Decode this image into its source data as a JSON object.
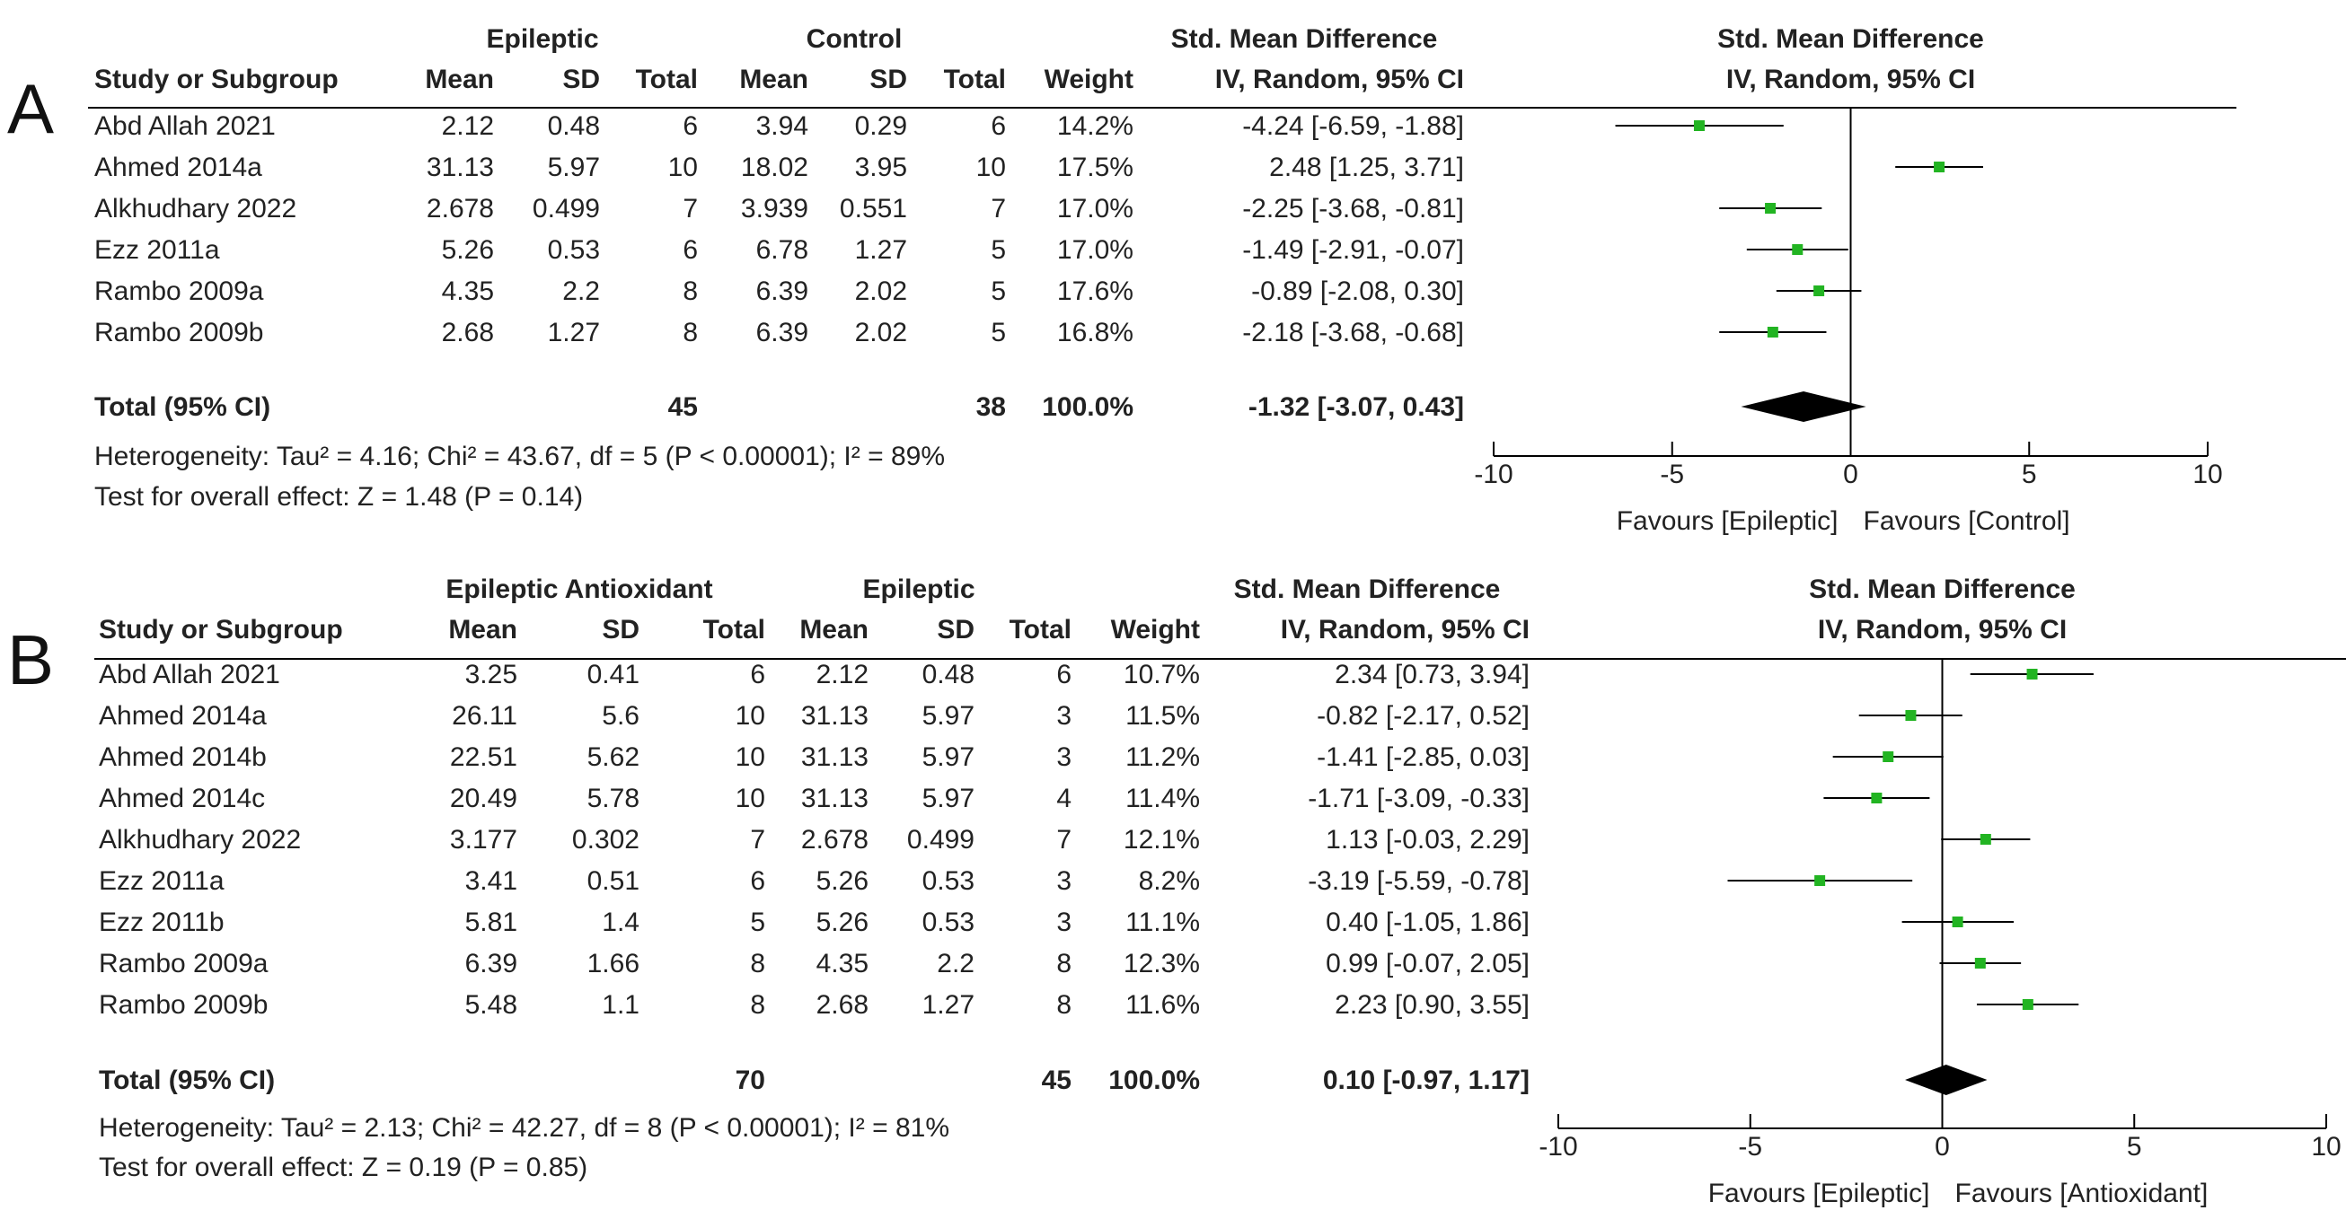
{
  "colors": {
    "marker": "#22b422",
    "diamond": "#000000",
    "line": "#000000",
    "text": "#222222"
  },
  "chart_data": [
    {
      "type": "forest",
      "panel_label": "A",
      "group1_label": "Epileptic",
      "group2_label": "Control",
      "col_headers": {
        "study": "Study or Subgroup",
        "mean1": "Mean",
        "sd1": "SD",
        "total1": "Total",
        "mean2": "Mean",
        "sd2": "SD",
        "total2": "Total",
        "weight": "Weight",
        "effect_title": "Std. Mean Difference",
        "effect_method": "IV, Random, 95% CI"
      },
      "plot_title": "Std. Mean Difference",
      "plot_method": "IV, Random, 95% CI",
      "studies": [
        {
          "name": "Abd Allah 2021",
          "mean1": "2.12",
          "sd1": "0.48",
          "total1": "6",
          "mean2": "3.94",
          "sd2": "0.29",
          "total2": "6",
          "weight": "14.2%",
          "ci_text": "-4.24 [-6.59, -1.88]",
          "est": -4.24,
          "lo": -6.59,
          "hi": -1.88
        },
        {
          "name": "Ahmed 2014a",
          "mean1": "31.13",
          "sd1": "5.97",
          "total1": "10",
          "mean2": "18.02",
          "sd2": "3.95",
          "total2": "10",
          "weight": "17.5%",
          "ci_text": "2.48 [1.25, 3.71]",
          "est": 2.48,
          "lo": 1.25,
          "hi": 3.71
        },
        {
          "name": "Alkhudhary 2022",
          "mean1": "2.678",
          "sd1": "0.499",
          "total1": "7",
          "mean2": "3.939",
          "sd2": "0.551",
          "total2": "7",
          "weight": "17.0%",
          "ci_text": "-2.25 [-3.68, -0.81]",
          "est": -2.25,
          "lo": -3.68,
          "hi": -0.81
        },
        {
          "name": "Ezz 2011a",
          "mean1": "5.26",
          "sd1": "0.53",
          "total1": "6",
          "mean2": "6.78",
          "sd2": "1.27",
          "total2": "5",
          "weight": "17.0%",
          "ci_text": "-1.49 [-2.91, -0.07]",
          "est": -1.49,
          "lo": -2.91,
          "hi": -0.07
        },
        {
          "name": "Rambo 2009a",
          "mean1": "4.35",
          "sd1": "2.2",
          "total1": "8",
          "mean2": "6.39",
          "sd2": "2.02",
          "total2": "5",
          "weight": "17.6%",
          "ci_text": "-0.89 [-2.08, 0.30]",
          "est": -0.89,
          "lo": -2.08,
          "hi": 0.3
        },
        {
          "name": "Rambo 2009b",
          "mean1": "2.68",
          "sd1": "1.27",
          "total1": "8",
          "mean2": "6.39",
          "sd2": "2.02",
          "total2": "5",
          "weight": "16.8%",
          "ci_text": "-2.18 [-3.68, -0.68]",
          "est": -2.18,
          "lo": -3.68,
          "hi": -0.68
        }
      ],
      "total": {
        "label": "Total (95% CI)",
        "total1": "45",
        "total2": "38",
        "weight": "100.0%",
        "ci_text": "-1.32 [-3.07, 0.43]",
        "est": -1.32,
        "lo": -3.07,
        "hi": 0.43
      },
      "heterogeneity": "Heterogeneity: Tau² = 4.16; Chi² = 43.67, df = 5 (P < 0.00001); I² = 89%",
      "overall_effect": "Test for overall effect: Z = 1.48 (P = 0.14)",
      "xlim": [
        -10,
        10
      ],
      "ticks": [
        -10,
        -5,
        0,
        5,
        10
      ],
      "favours_left": "Favours [Epileptic]",
      "favours_right": "Favours [Control]"
    },
    {
      "type": "forest",
      "panel_label": "B",
      "group1_label": "Epileptic Antioxidant",
      "group2_label": "Epileptic",
      "col_headers": {
        "study": "Study or Subgroup",
        "mean1": "Mean",
        "sd1": "SD",
        "total1": "Total",
        "mean2": "Mean",
        "sd2": "SD",
        "total2": "Total",
        "weight": "Weight",
        "effect_title": "Std. Mean Difference",
        "effect_method": "IV, Random, 95% CI"
      },
      "plot_title": "Std. Mean Difference",
      "plot_method": "IV, Random, 95% CI",
      "studies": [
        {
          "name": "Abd Allah 2021",
          "mean1": "3.25",
          "sd1": "0.41",
          "total1": "6",
          "mean2": "2.12",
          "sd2": "0.48",
          "total2": "6",
          "weight": "10.7%",
          "ci_text": "2.34 [0.73, 3.94]",
          "est": 2.34,
          "lo": 0.73,
          "hi": 3.94
        },
        {
          "name": "Ahmed 2014a",
          "mean1": "26.11",
          "sd1": "5.6",
          "total1": "10",
          "mean2": "31.13",
          "sd2": "5.97",
          "total2": "3",
          "weight": "11.5%",
          "ci_text": "-0.82 [-2.17, 0.52]",
          "est": -0.82,
          "lo": -2.17,
          "hi": 0.52
        },
        {
          "name": "Ahmed 2014b",
          "mean1": "22.51",
          "sd1": "5.62",
          "total1": "10",
          "mean2": "31.13",
          "sd2": "5.97",
          "total2": "3",
          "weight": "11.2%",
          "ci_text": "-1.41 [-2.85, 0.03]",
          "est": -1.41,
          "lo": -2.85,
          "hi": 0.03
        },
        {
          "name": "Ahmed 2014c",
          "mean1": "20.49",
          "sd1": "5.78",
          "total1": "10",
          "mean2": "31.13",
          "sd2": "5.97",
          "total2": "4",
          "weight": "11.4%",
          "ci_text": "-1.71 [-3.09, -0.33]",
          "est": -1.71,
          "lo": -3.09,
          "hi": -0.33
        },
        {
          "name": "Alkhudhary 2022",
          "mean1": "3.177",
          "sd1": "0.302",
          "total1": "7",
          "mean2": "2.678",
          "sd2": "0.499",
          "total2": "7",
          "weight": "12.1%",
          "ci_text": "1.13 [-0.03, 2.29]",
          "est": 1.13,
          "lo": -0.03,
          "hi": 2.29
        },
        {
          "name": "Ezz 2011a",
          "mean1": "3.41",
          "sd1": "0.51",
          "total1": "6",
          "mean2": "5.26",
          "sd2": "0.53",
          "total2": "3",
          "weight": "8.2%",
          "ci_text": "-3.19 [-5.59, -0.78]",
          "est": -3.19,
          "lo": -5.59,
          "hi": -0.78
        },
        {
          "name": "Ezz 2011b",
          "mean1": "5.81",
          "sd1": "1.4",
          "total1": "5",
          "mean2": "5.26",
          "sd2": "0.53",
          "total2": "3",
          "weight": "11.1%",
          "ci_text": "0.40 [-1.05, 1.86]",
          "est": 0.4,
          "lo": -1.05,
          "hi": 1.86
        },
        {
          "name": "Rambo 2009a",
          "mean1": "6.39",
          "sd1": "1.66",
          "total1": "8",
          "mean2": "4.35",
          "sd2": "2.2",
          "total2": "8",
          "weight": "12.3%",
          "ci_text": "0.99 [-0.07, 2.05]",
          "est": 0.99,
          "lo": -0.07,
          "hi": 2.05
        },
        {
          "name": "Rambo 2009b",
          "mean1": "5.48",
          "sd1": "1.1",
          "total1": "8",
          "mean2": "2.68",
          "sd2": "1.27",
          "total2": "8",
          "weight": "11.6%",
          "ci_text": "2.23 [0.90, 3.55]",
          "est": 2.23,
          "lo": 0.9,
          "hi": 3.55
        }
      ],
      "total": {
        "label": "Total (95% CI)",
        "total1": "70",
        "total2": "45",
        "weight": "100.0%",
        "ci_text": "0.10 [-0.97, 1.17]",
        "est": 0.1,
        "lo": -0.97,
        "hi": 1.17
      },
      "heterogeneity": "Heterogeneity: Tau² = 2.13; Chi² = 42.27, df = 8 (P < 0.00001); I² = 81%",
      "overall_effect": "Test for overall effect: Z = 0.19 (P = 0.85)",
      "xlim": [
        -10,
        10
      ],
      "ticks": [
        -10,
        -5,
        0,
        5,
        10
      ],
      "favours_left": "Favours [Epileptic]",
      "favours_right": "Favours [Antioxidant]"
    }
  ]
}
